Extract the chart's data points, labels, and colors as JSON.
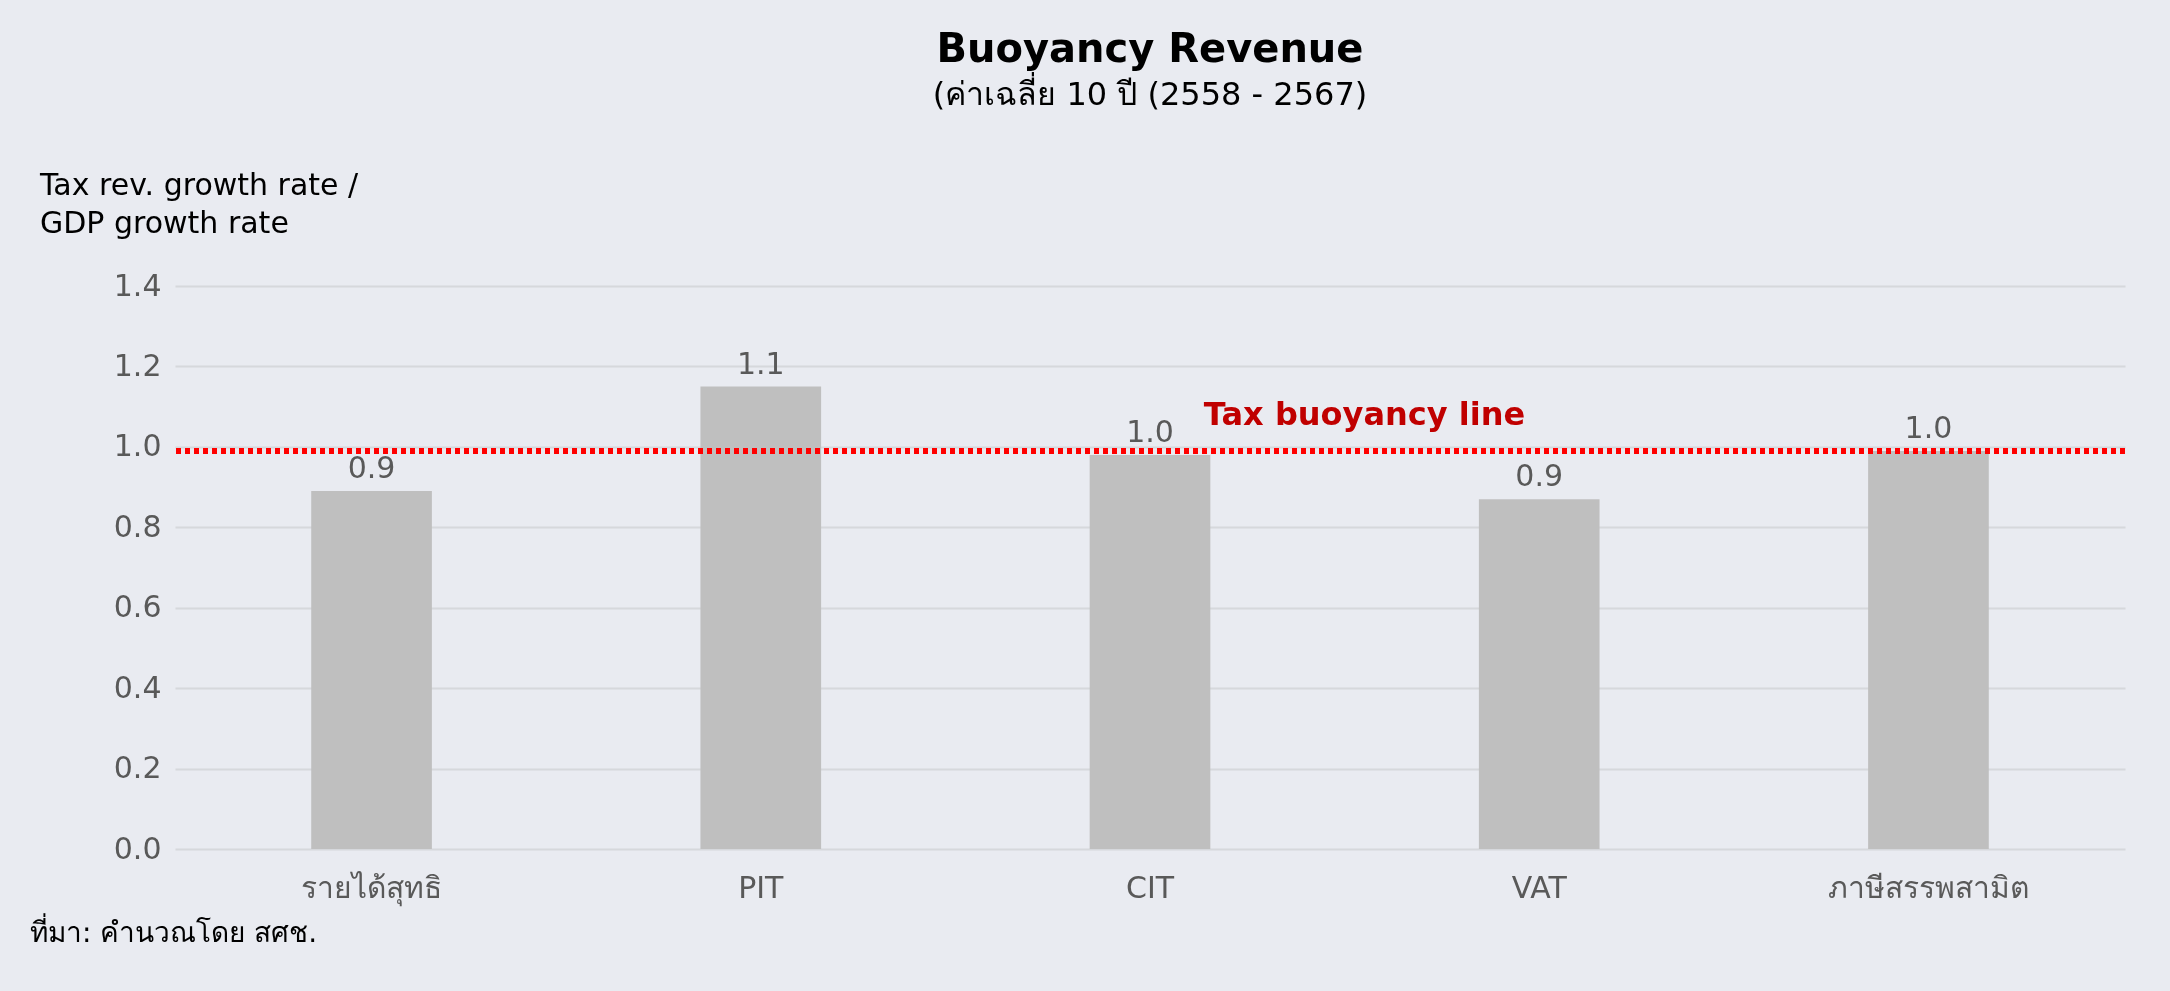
{
  "chart_data": {
    "type": "bar",
    "title": "Buoyancy Revenue",
    "subtitle": "(ค่าเฉลี่ย 10 ปี (2558 - 2567)",
    "ylabel": "Tax rev. growth rate /\nGDP growth rate",
    "categories": [
      "รายได้สุทธิ",
      "PIT",
      "CIT",
      "VAT",
      "ภาษีสรรพสามิต"
    ],
    "values": [
      0.89,
      1.15,
      0.98,
      0.87,
      0.99
    ],
    "value_labels": [
      "0.9",
      "1.1",
      "1.0",
      "0.9",
      "1.0"
    ],
    "color": "#bfbfbf",
    "ylim": [
      0,
      1.4
    ],
    "yticks": [
      {
        "value": 0,
        "label": "0.0"
      },
      {
        "value": 0.2,
        "label": "0.2"
      },
      {
        "value": 0.4,
        "label": "0.4"
      },
      {
        "value": 0.6,
        "label": "0.6"
      },
      {
        "value": 0.8,
        "label": "0.8"
      },
      {
        "value": 1,
        "label": "1.0"
      },
      {
        "value": 1.2,
        "label": "1.2"
      },
      {
        "value": 1.4,
        "label": "1.4"
      }
    ],
    "grid": "y",
    "ref_lines": [
      {
        "axis": "y",
        "value": 0.99,
        "label": "Tax buoyancy line",
        "color": "#ff0000",
        "line_style": "dotted"
      }
    ],
    "annotations": [
      "ที่มา: คำนวณโดย สศช."
    ]
  }
}
